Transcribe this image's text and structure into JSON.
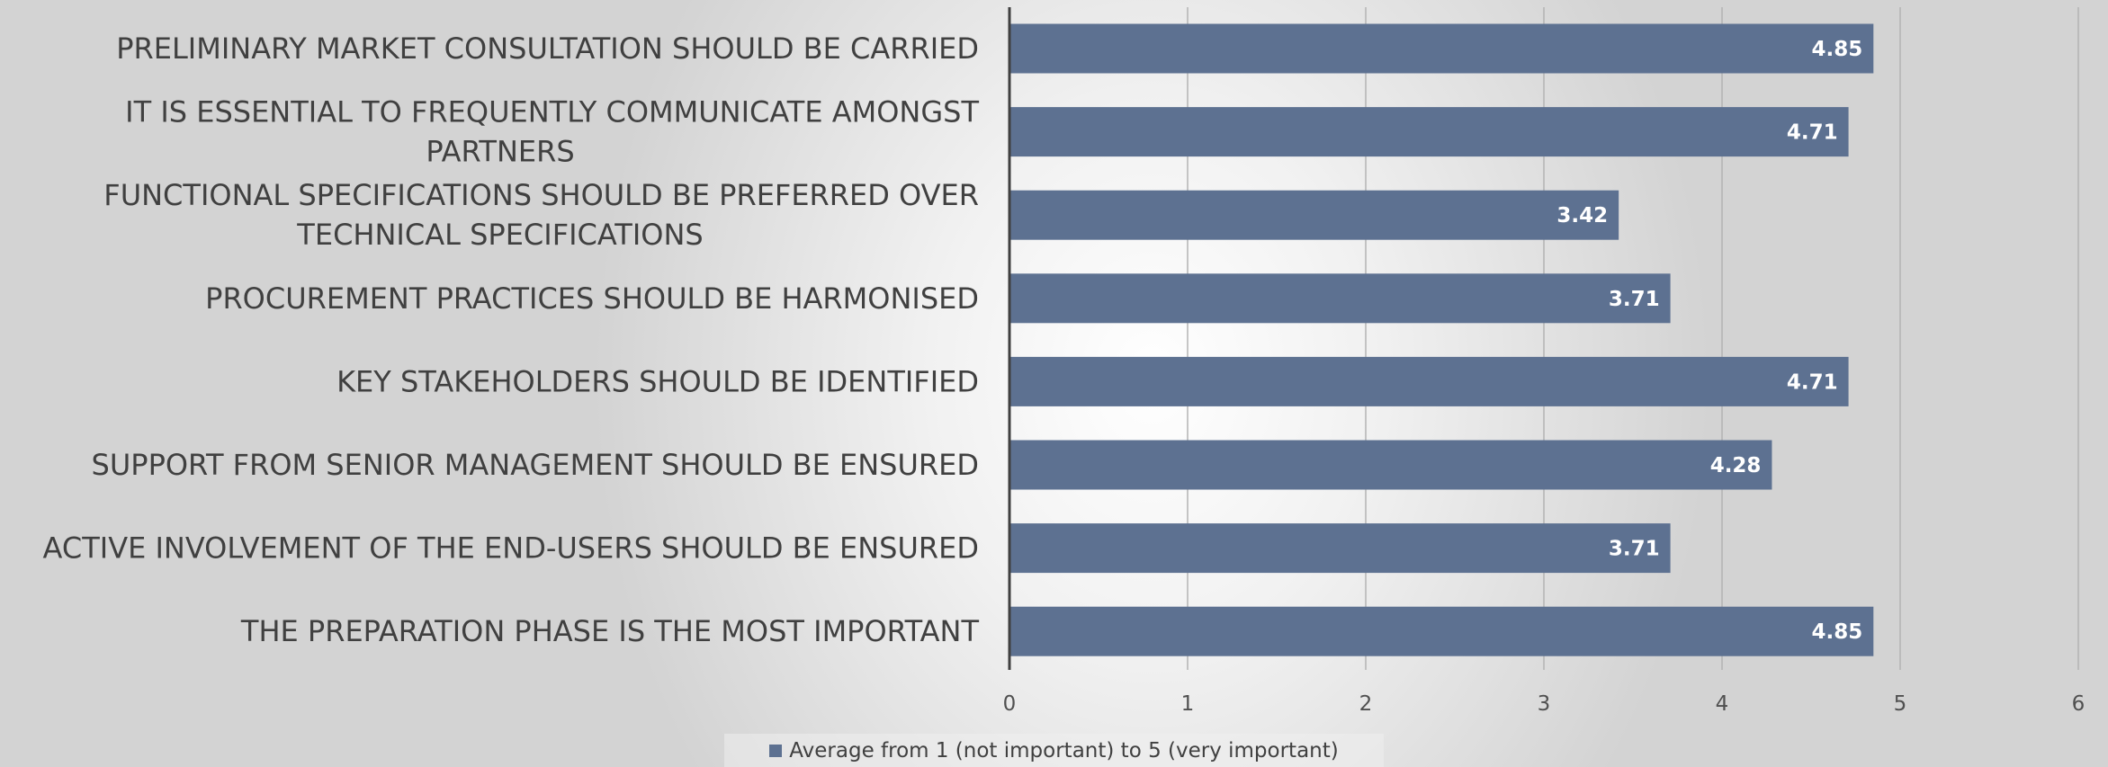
{
  "chart_data": {
    "type": "bar",
    "orientation": "horizontal",
    "categories": [
      "PRELIMINARY MARKET CONSULTATION SHOULD BE CARRIED",
      "IT IS ESSENTIAL TO FREQUENTLY COMMUNICATE AMONGST PARTNERS",
      "FUNCTIONAL SPECIFICATIONS SHOULD BE PREFERRED OVER TECHNICAL SPECIFICATIONS",
      "PROCUREMENT PRACTICES SHOULD BE HARMONISED",
      "KEY STAKEHOLDERS SHOULD BE IDENTIFIED",
      "SUPPORT FROM SENIOR MANAGEMENT SHOULD BE ENSURED",
      "ACTIVE INVOLVEMENT OF THE END-USERS SHOULD BE ENSURED",
      "THE PREPARATION PHASE IS THE MOST IMPORTANT"
    ],
    "series": [
      {
        "name": "Average from 1 (not important) to 5 (very important)",
        "values": [
          4.85,
          4.71,
          3.42,
          3.71,
          4.71,
          4.28,
          3.71,
          4.85
        ],
        "data_labels": [
          "4.85",
          "4.71",
          "3.42",
          "3.71",
          "4.71",
          "4.28",
          "3.71",
          "4.85"
        ]
      }
    ],
    "xlim": [
      0,
      6
    ],
    "x_ticks": [
      "0",
      "1",
      "2",
      "3",
      "4",
      "5",
      "6"
    ],
    "grid": true,
    "legend_position": "bottom",
    "bar_color": "#5d7191"
  }
}
